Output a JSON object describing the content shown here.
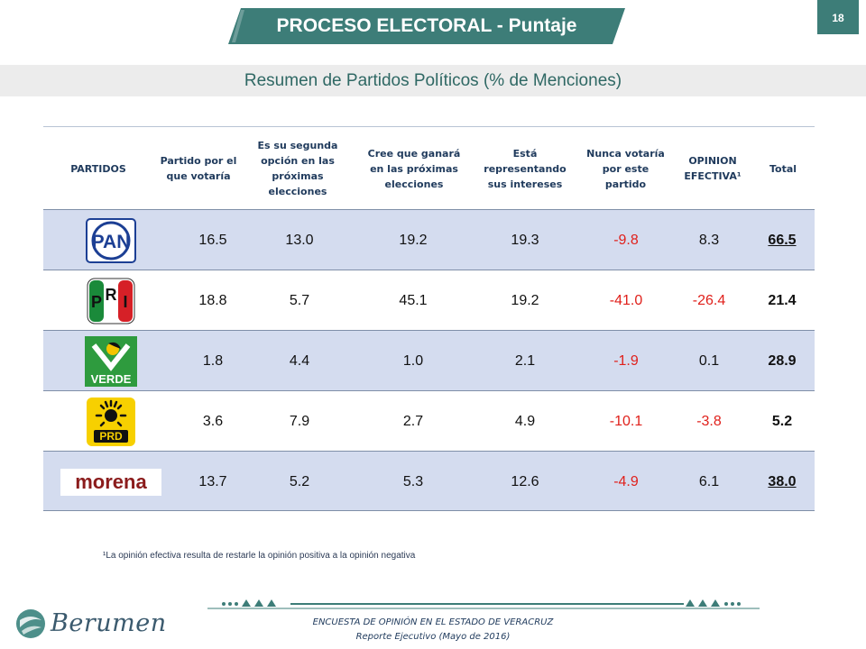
{
  "header": {
    "title": "PROCESO ELECTORAL - Puntaje",
    "page_number": "18",
    "subtitle": "Resumen de Partidos Políticos (% de Menciones)"
  },
  "table": {
    "columns": [
      "PARTIDOS",
      "Partido por el que votaría",
      "Es su segunda opción en las próximas elecciones",
      "Cree que ganará en las próximas elecciones",
      "Está representando sus intereses",
      "Nunca votaría por este partido",
      "OPINION EFECTIVA¹",
      "Total"
    ],
    "rows": [
      {
        "party": "PAN",
        "logo": "pan-logo",
        "logo_text": "PAN",
        "values": [
          "16.5",
          "13.0",
          "19.2",
          "19.3",
          "-9.8",
          "8.3",
          "66.5"
        ],
        "total_underlined": true
      },
      {
        "party": "PRI",
        "logo": "pri-logo",
        "logo_text": "PRI",
        "values": [
          "18.8",
          "5.7",
          "45.1",
          "19.2",
          "-41.0",
          "-26.4",
          "21.4"
        ],
        "total_underlined": false
      },
      {
        "party": "VERDE",
        "logo": "verde-logo",
        "logo_text": "VERDE",
        "values": [
          "1.8",
          "4.4",
          "1.0",
          "2.1",
          "-1.9",
          "0.1",
          "28.9"
        ],
        "total_underlined": false
      },
      {
        "party": "PRD",
        "logo": "prd-logo",
        "logo_text": "PRD",
        "values": [
          "3.6",
          "7.9",
          "2.7",
          "4.9",
          "-10.1",
          "-3.8",
          "5.2"
        ],
        "total_underlined": false
      },
      {
        "party": "MORENA",
        "logo": "morena-logo",
        "logo_text": "morena",
        "values": [
          "13.7",
          "5.2",
          "5.3",
          "12.6",
          "-4.9",
          "6.1",
          "38.0"
        ],
        "total_underlined": true
      }
    ]
  },
  "footnote": "¹La opinión  efectiva resulta de restarle la opinión  positiva a la opinión negativa",
  "footer": {
    "brand": "Berumen",
    "line1": "ENCUESTA DE OPINIÓN EN EL ESTADO DE  VERACRUZ",
    "line2": "Reporte  Ejecutivo   (Mayo de 2016)"
  },
  "colors": {
    "accent": "#3d7d78",
    "row_shade": "#d4dcef",
    "negative": "#e0201b",
    "header_text": "#1f3a5c"
  }
}
